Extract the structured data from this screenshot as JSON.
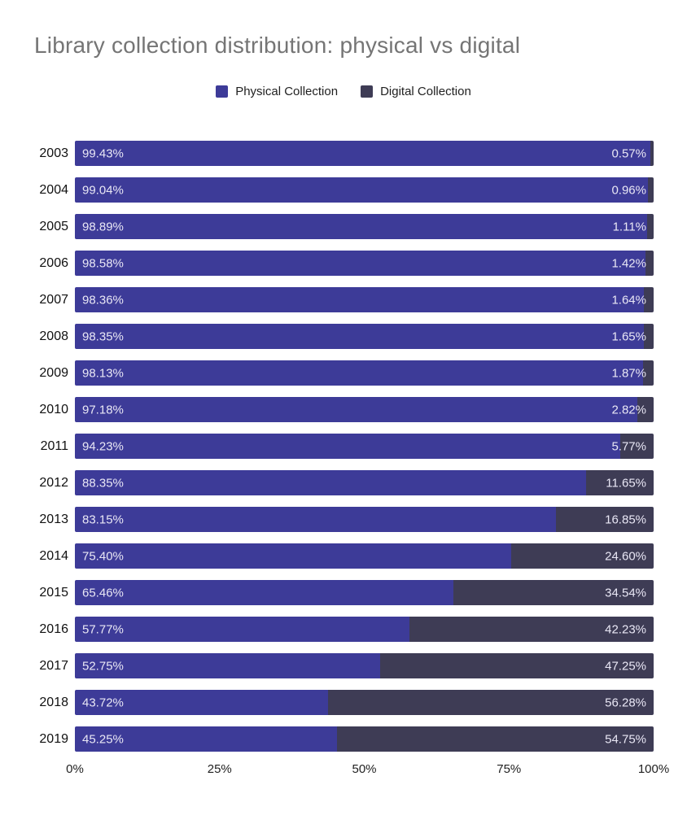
{
  "title": "Library collection distribution:  physical vs digital",
  "legend": {
    "physical_label": "Physical Collection",
    "digital_label": "Digital Collection"
  },
  "colors": {
    "physical": "#3d3b98",
    "digital": "#3e3c55",
    "title_text": "#757575",
    "axis_text": "#212121",
    "bar_label_text": "#e9e7f5"
  },
  "chart_data": {
    "type": "bar",
    "orientation": "horizontal",
    "stacked": true,
    "title": "Library collection distribution:  physical vs digital",
    "categories": [
      "2003",
      "2004",
      "2005",
      "2006",
      "2007",
      "2008",
      "2009",
      "2010",
      "2011",
      "2012",
      "2013",
      "2014",
      "2015",
      "2016",
      "2017",
      "2018",
      "2019"
    ],
    "series": [
      {
        "name": "Physical Collection",
        "color": "#3d3b98",
        "values": [
          99.43,
          99.04,
          98.89,
          98.58,
          98.36,
          98.35,
          98.13,
          97.18,
          94.23,
          88.35,
          83.15,
          75.4,
          65.46,
          57.77,
          52.75,
          43.72,
          45.25
        ],
        "labels": [
          "99.43%",
          "99.04%",
          "98.89%",
          "98.58%",
          "98.36%",
          "98.35%",
          "98.13%",
          "97.18%",
          "94.23%",
          "88.35%",
          "83.15%",
          "75.40%",
          "65.46%",
          "57.77%",
          "52.75%",
          "43.72%",
          "45.25%"
        ]
      },
      {
        "name": "Digital Collection",
        "color": "#3e3c55",
        "values": [
          0.57,
          0.96,
          1.11,
          1.42,
          1.64,
          1.65,
          1.87,
          2.82,
          5.77,
          11.65,
          16.85,
          24.6,
          34.54,
          42.23,
          47.25,
          56.28,
          54.75
        ],
        "labels": [
          "0.57%",
          "0.96%",
          "1.11%",
          "1.42%",
          "1.64%",
          "1.65%",
          "1.87%",
          "2.82%",
          "5.77%",
          "11.65%",
          "16.85%",
          "24.60%",
          "34.54%",
          "42.23%",
          "47.25%",
          "56.28%",
          "54.75%"
        ]
      }
    ],
    "x_ticks": [
      {
        "label": "0%",
        "pos": 0
      },
      {
        "label": "25%",
        "pos": 25
      },
      {
        "label": "50%",
        "pos": 50
      },
      {
        "label": "75%",
        "pos": 75
      },
      {
        "label": "100%",
        "pos": 100
      }
    ],
    "xlim": [
      0,
      100
    ],
    "grid": false,
    "legend_position": "top"
  }
}
